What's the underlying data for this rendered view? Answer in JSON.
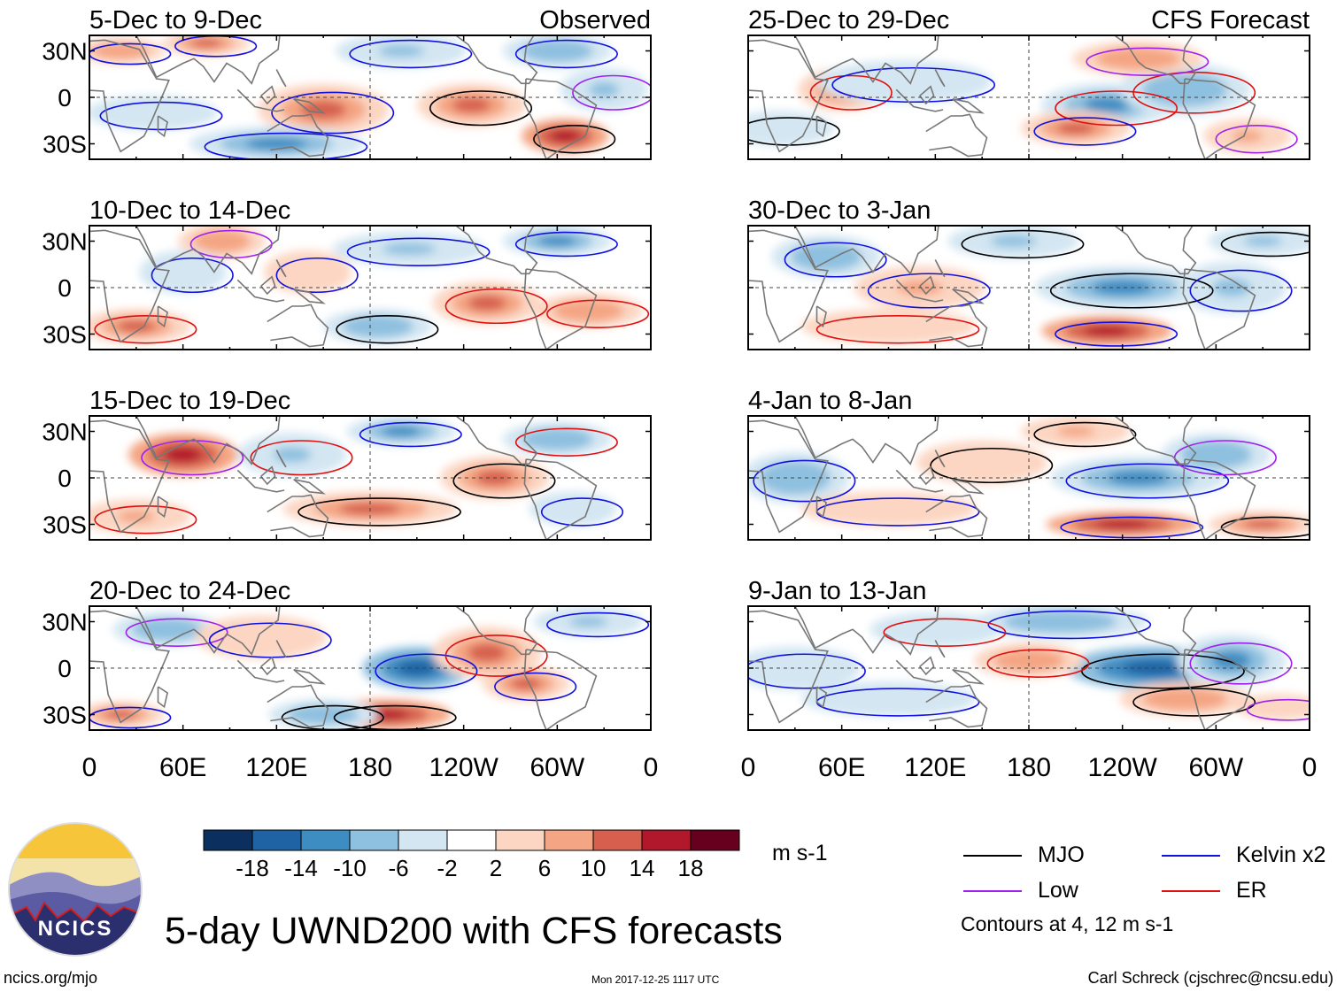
{
  "figure": {
    "title": "5-day UWND200 with CFS forecasts",
    "observed_label": "Observed",
    "forecast_label": "CFS Forecast",
    "units": "m s-1",
    "contours_note": "Contours at 4, 12 m s-1",
    "url": "ncics.org/mjo",
    "timestamp": "Mon 2017-12-25 1117 UTC",
    "author": "Carl Schreck (cjschrec@ncsu.edu)",
    "logo_text": "NCICS"
  },
  "legend": [
    {
      "name": "MJO",
      "color": "#000000"
    },
    {
      "name": "Kelvin x2",
      "color": "#1010e0"
    },
    {
      "name": "Low",
      "color": "#a020f0"
    },
    {
      "name": "ER",
      "color": "#e01010"
    }
  ],
  "colorbar": {
    "ticks": [
      "-18",
      "-14",
      "-10",
      "-6",
      "-2",
      "2",
      "6",
      "10",
      "14",
      "18"
    ],
    "colors": [
      "#0b2f5e",
      "#1f63a5",
      "#3d8cc2",
      "#8ec0df",
      "#d3e6f2",
      "#ffffff",
      "#fcd6c2",
      "#f4a583",
      "#d6604d",
      "#b2182b",
      "#67001f"
    ]
  },
  "axes": {
    "lon_ticks": [
      "0",
      "60E",
      "120E",
      "180",
      "120W",
      "60W",
      "0"
    ],
    "lat_ticks": [
      "30N",
      "0",
      "30S"
    ]
  },
  "chart_data": {
    "type": "heatmap",
    "variable": "200-hPa zonal wind anomaly",
    "x_range_deg": [
      0,
      360
    ],
    "y_range_deg": [
      -40,
      40
    ],
    "color_levels": [
      -18,
      -14,
      -10,
      -6,
      -2,
      2,
      6,
      10,
      14,
      18
    ],
    "panels": [
      {
        "period": "5-Dec to 9-Dec",
        "source": "Observed",
        "blobs": [
          [
            150,
            -8,
            30,
            12,
            14
          ],
          [
            305,
            -25,
            20,
            8,
            16
          ],
          [
            245,
            -5,
            25,
            10,
            12
          ],
          [
            75,
            35,
            20,
            6,
            12
          ],
          [
            20,
            30,
            20,
            6,
            10
          ],
          [
            200,
            30,
            30,
            8,
            -8
          ],
          [
            300,
            30,
            25,
            8,
            -10
          ],
          [
            120,
            -30,
            40,
            8,
            -12
          ],
          [
            40,
            -10,
            30,
            8,
            -6
          ],
          [
            330,
            5,
            20,
            10,
            -8
          ]
        ]
      },
      {
        "period": "25-Dec to 29-Dec",
        "source": "CFS Forecast",
        "blobs": [
          [
            230,
            -5,
            30,
            10,
            -14
          ],
          [
            280,
            5,
            30,
            12,
            -10
          ],
          [
            60,
            5,
            20,
            10,
            10
          ],
          [
            210,
            -20,
            25,
            8,
            12
          ],
          [
            250,
            25,
            30,
            8,
            10
          ],
          [
            100,
            10,
            40,
            10,
            -6
          ],
          [
            320,
            -25,
            20,
            8,
            8
          ],
          [
            20,
            -20,
            25,
            8,
            -6
          ]
        ]
      },
      {
        "period": "10-Dec to 14-Dec",
        "source": "Observed",
        "blobs": [
          [
            255,
            -10,
            25,
            10,
            14
          ],
          [
            30,
            -25,
            25,
            8,
            14
          ],
          [
            205,
            25,
            35,
            8,
            -8
          ],
          [
            300,
            30,
            25,
            7,
            -14
          ],
          [
            85,
            30,
            20,
            8,
            10
          ],
          [
            140,
            10,
            20,
            10,
            6
          ],
          [
            185,
            -25,
            25,
            8,
            -10
          ],
          [
            320,
            -15,
            25,
            8,
            10
          ],
          [
            60,
            10,
            20,
            10,
            -6
          ]
        ]
      },
      {
        "period": "30-Dec to 3-Jan",
        "source": "CFS Forecast",
        "blobs": [
          [
            240,
            0,
            40,
            10,
            -12
          ],
          [
            310,
            0,
            25,
            12,
            -8
          ],
          [
            230,
            -28,
            30,
            7,
            16
          ],
          [
            50,
            20,
            25,
            10,
            -10
          ],
          [
            110,
            0,
            30,
            10,
            8
          ],
          [
            170,
            30,
            30,
            8,
            -8
          ],
          [
            330,
            30,
            25,
            7,
            -8
          ],
          [
            90,
            -25,
            40,
            8,
            6
          ]
        ]
      },
      {
        "period": "15-Dec to 19-Dec",
        "source": "Observed",
        "blobs": [
          [
            60,
            15,
            25,
            10,
            16
          ],
          [
            260,
            0,
            25,
            10,
            14
          ],
          [
            180,
            -20,
            40,
            8,
            14
          ],
          [
            200,
            30,
            25,
            7,
            -14
          ],
          [
            130,
            15,
            25,
            10,
            -8
          ],
          [
            300,
            25,
            25,
            8,
            -10
          ],
          [
            30,
            -25,
            25,
            8,
            8
          ],
          [
            310,
            -20,
            20,
            8,
            -6
          ]
        ]
      },
      {
        "period": "4-Jan to 8-Jan",
        "source": "CFS Forecast",
        "blobs": [
          [
            250,
            0,
            40,
            10,
            -14
          ],
          [
            300,
            15,
            25,
            10,
            -10
          ],
          [
            30,
            0,
            25,
            12,
            -10
          ],
          [
            240,
            -30,
            35,
            6,
            16
          ],
          [
            330,
            -30,
            25,
            6,
            12
          ],
          [
            150,
            10,
            30,
            10,
            6
          ],
          [
            210,
            30,
            25,
            7,
            8
          ],
          [
            90,
            -20,
            40,
            8,
            4
          ]
        ]
      },
      {
        "period": "20-Dec to 24-Dec",
        "source": "Observed",
        "blobs": [
          [
            210,
            0,
            25,
            10,
            -16
          ],
          [
            255,
            10,
            25,
            12,
            12
          ],
          [
            50,
            25,
            25,
            8,
            -10
          ],
          [
            280,
            -10,
            20,
            8,
            12
          ],
          [
            190,
            -30,
            30,
            7,
            16
          ],
          [
            320,
            30,
            25,
            7,
            -8
          ],
          [
            20,
            -30,
            20,
            6,
            14
          ],
          [
            150,
            -30,
            25,
            7,
            -10
          ],
          [
            110,
            20,
            30,
            10,
            6
          ]
        ]
      },
      {
        "period": "9-Jan to 13-Jan",
        "source": "CFS Forecast",
        "blobs": [
          [
            260,
            0,
            40,
            10,
            -16
          ],
          [
            310,
            5,
            25,
            12,
            -12
          ],
          [
            30,
            0,
            30,
            10,
            -6
          ],
          [
            180,
            5,
            25,
            8,
            10
          ],
          [
            200,
            30,
            40,
            8,
            -10
          ],
          [
            280,
            -20,
            30,
            8,
            10
          ],
          [
            120,
            25,
            30,
            8,
            -6
          ],
          [
            90,
            -20,
            40,
            8,
            -4
          ],
          [
            340,
            -25,
            20,
            6,
            6
          ]
        ]
      }
    ]
  }
}
